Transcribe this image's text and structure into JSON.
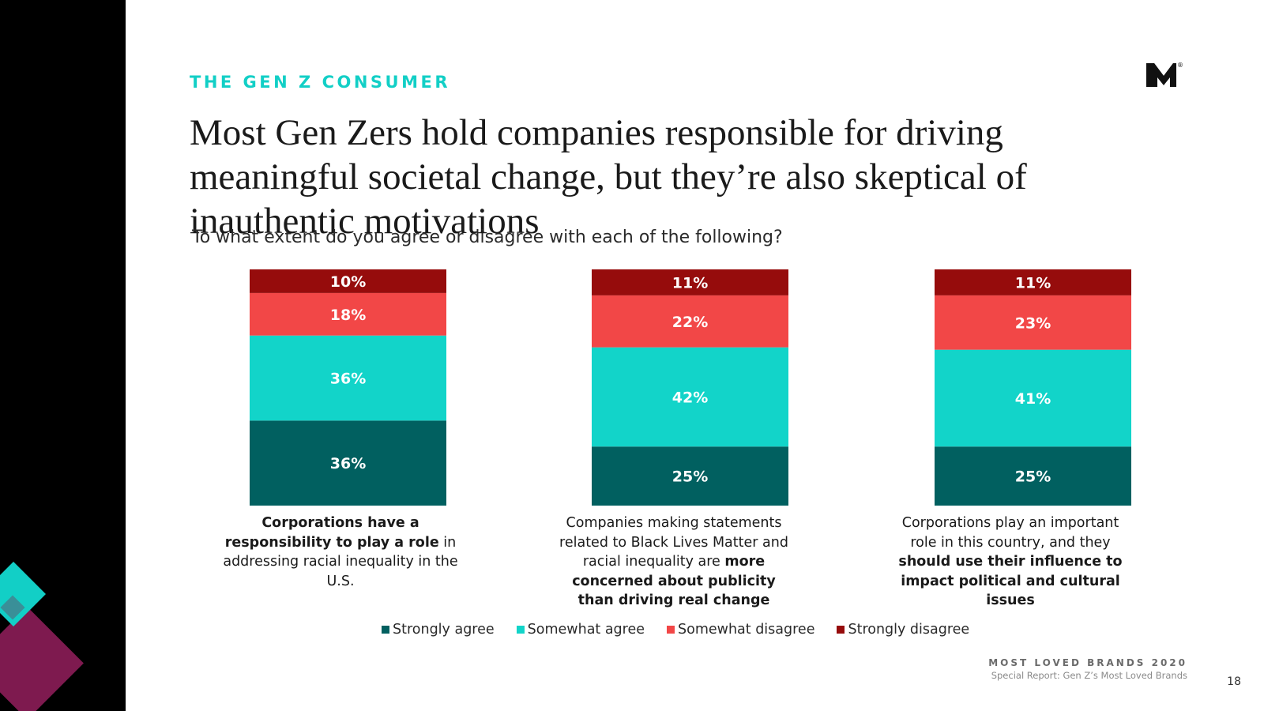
{
  "eyebrow": "THE GEN Z CONSUMER",
  "headline": "Most Gen Zers hold companies responsible for driving meaningful societal change, but they’re also skeptical of inauthentic motivations",
  "question": "To what extent do you agree or disagree with each of the following?",
  "logo": {
    "icon": "M-brand-logo-icon",
    "mark": "®"
  },
  "colors": {
    "strongly_agree": "#016060",
    "somewhat_agree": "#12d4c9",
    "somewhat_disagree": "#f24747",
    "strongly_disagree": "#960c0c",
    "accent": "#12cfc6"
  },
  "chart_data": {
    "type": "bar",
    "stacked": true,
    "categories": [
      "Corporations have a responsibility to play a role in addressing racial inequality in the U.S.",
      "Companies making statements related to Black Lives Matter and racial inequality are more concerned about publicity than driving real change",
      "Corporations play an important role in this country, and they should use their influence to impact political and cultural issues"
    ],
    "series": [
      {
        "name": "Strongly agree",
        "values": [
          36,
          25,
          25
        ],
        "labels": [
          "36%",
          "25%",
          "25%"
        ]
      },
      {
        "name": "Somewhat agree",
        "values": [
          36,
          42,
          41
        ],
        "labels": [
          "36%",
          "42%",
          "41%"
        ]
      },
      {
        "name": "Somewhat disagree",
        "values": [
          18,
          22,
          23
        ],
        "labels": [
          "18%",
          "22%",
          "23%"
        ]
      },
      {
        "name": "Strongly disagree",
        "values": [
          10,
          11,
          11
        ],
        "labels": [
          "10%",
          "11%",
          "11%"
        ]
      }
    ],
    "legend_position": "bottom",
    "grid": false
  },
  "captions": [
    {
      "bold1": "Corporations have a responsibility to play a role",
      "normal1": " in addressing racial inequality in the U.S.",
      "bold2": ""
    },
    {
      "bold1": "",
      "normal1": "Companies making statements related to Black Lives Matter and racial inequality are ",
      "bold2": "more concerned about publicity than driving real change"
    },
    {
      "bold1": "",
      "normal1": "Corporations play an important role in this country, and they ",
      "bold2": "should use their influence to impact political and cultural issues"
    }
  ],
  "legend": [
    "Strongly agree",
    "Somewhat agree",
    "Somewhat disagree",
    "Strongly disagree"
  ],
  "footer": {
    "brand": "MOST LOVED BRANDS 2020",
    "subtitle": "Special Report: Gen Z’s Most Loved Brands",
    "page": "18"
  }
}
